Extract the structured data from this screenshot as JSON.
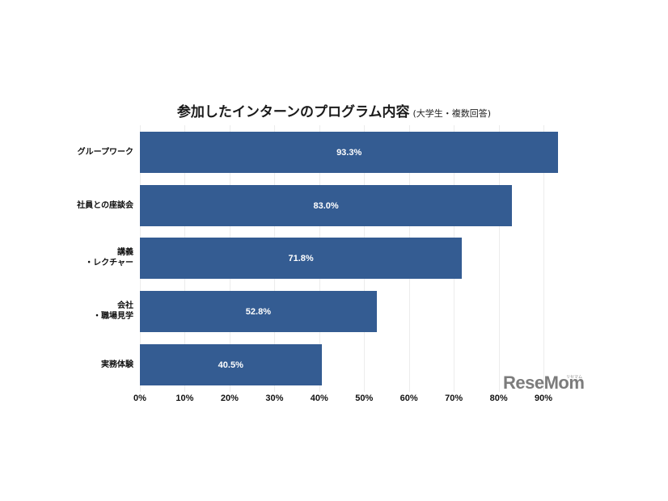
{
  "title": {
    "main": "参加したインターンのプログラム内容",
    "sub": "(大学生・複数回答)"
  },
  "chart_data": {
    "type": "bar",
    "orientation": "horizontal",
    "title": "参加したインターンのプログラム内容 (大学生・複数回答)",
    "categories": [
      "グループワーク",
      "社員との座談会",
      "講義\n・レクチャー",
      "会社\n・職場見学",
      "実務体験"
    ],
    "values": [
      93.3,
      83.0,
      71.8,
      52.8,
      40.5
    ],
    "value_labels": [
      "93.3%",
      "83.0%",
      "71.8%",
      "52.8%",
      "40.5%"
    ],
    "xlabel": "",
    "ylabel": "",
    "xlim": [
      0,
      95
    ],
    "xticks": [
      "0%",
      "10%",
      "20%",
      "30%",
      "40%",
      "50%",
      "60%",
      "70%",
      "80%",
      "90%"
    ],
    "grid": true,
    "bar_color": "#345c92"
  },
  "logo": {
    "text": "ReseMom",
    "ruby": "リセマム"
  }
}
